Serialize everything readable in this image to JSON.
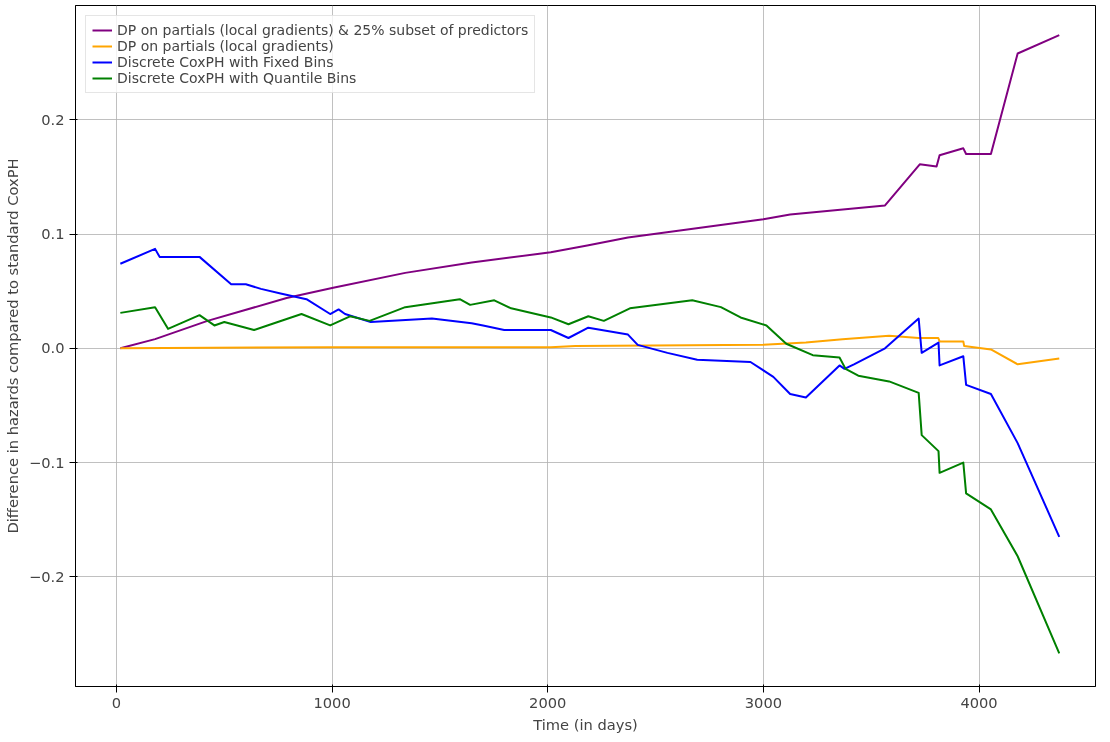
{
  "chart_data": {
    "type": "line",
    "xlabel": "Time (in days)",
    "ylabel": "Difference in hazards compared to standard CoxPH",
    "xlim": [
      -190,
      4540
    ],
    "ylim": [
      -0.296,
      0.3
    ],
    "xticks": [
      0,
      1000,
      2000,
      3000,
      4000
    ],
    "yticks": [
      {
        "value": -0.2,
        "label": "−0.2"
      },
      {
        "value": -0.1,
        "label": "−0.1"
      },
      {
        "value": 0.0,
        "label": "0.0"
      },
      {
        "value": 0.1,
        "label": "0.1"
      },
      {
        "value": 0.2,
        "label": "0.2"
      }
    ],
    "grid": true,
    "legend": "top left",
    "line_style": "solid",
    "series": [
      {
        "name": "DP on partials (local gradients) & 25% subset of predictors",
        "color": "#800080",
        "x": [
          18,
          179,
          422,
          789,
          1005,
          1339,
          1647,
          2014,
          2183,
          2372,
          3000,
          3124,
          3564,
          3725,
          3803,
          3817,
          3927,
          3940,
          4055,
          4179,
          4372
        ],
        "values": [
          0.0,
          0.008,
          0.024,
          0.044,
          0.053,
          0.066,
          0.075,
          0.084,
          0.09,
          0.097,
          0.113,
          0.117,
          0.125,
          0.161,
          0.159,
          0.169,
          0.175,
          0.17,
          0.17,
          0.258,
          0.274
        ]
      },
      {
        "name": "DP on partials (local gradients)",
        "color": "#ffa500",
        "x": [
          18,
          1000,
          2014,
          2128,
          3000,
          3197,
          3367,
          3583,
          3720,
          3811,
          3817,
          3927,
          3931,
          4055,
          4179,
          4372
        ],
        "values": [
          0.0,
          0.001,
          0.001,
          0.002,
          0.003,
          0.005,
          0.008,
          0.011,
          0.009,
          0.009,
          0.006,
          0.006,
          0.002,
          -0.001,
          -0.014,
          -0.009
        ]
      },
      {
        "name": "Discrete CoxPH with Fixed Bins",
        "color": "#0000ff",
        "x": [
          18,
          179,
          200,
          385,
          532,
          600,
          670,
          761,
          881,
          991,
          1030,
          1060,
          1179,
          1463,
          1647,
          1700,
          1798,
          2014,
          2096,
          2188,
          2372,
          2417,
          2555,
          2693,
          2940,
          3046,
          3124,
          3197,
          3353,
          3376,
          3420,
          3564,
          3720,
          3734,
          3812,
          3817,
          3927,
          3940,
          4055,
          4179,
          4372
        ],
        "values": [
          0.074,
          0.087,
          0.08,
          0.08,
          0.056,
          0.056,
          0.052,
          0.048,
          0.043,
          0.03,
          0.034,
          0.03,
          0.023,
          0.026,
          0.022,
          0.02,
          0.016,
          0.016,
          0.009,
          0.018,
          0.012,
          0.003,
          -0.004,
          -0.01,
          -0.012,
          -0.025,
          -0.04,
          -0.043,
          -0.015,
          -0.018,
          -0.014,
          0.0,
          0.026,
          -0.004,
          0.005,
          -0.015,
          -0.007,
          -0.032,
          -0.04,
          -0.083,
          -0.165
        ]
      },
      {
        "name": "Discrete CoxPH with Quantile Bins",
        "color": "#008000",
        "x": [
          18,
          179,
          239,
          385,
          454,
          500,
          638,
          700,
          858,
          991,
          1083,
          1174,
          1339,
          1592,
          1640,
          1752,
          1830,
          2014,
          2096,
          2188,
          2260,
          2381,
          2670,
          2803,
          2894,
          3014,
          3106,
          3229,
          3353,
          3381,
          3440,
          3583,
          3720,
          3734,
          3812,
          3817,
          3927,
          3940,
          4055,
          4179,
          4372
        ],
        "values": [
          0.031,
          0.036,
          0.017,
          0.029,
          0.02,
          0.023,
          0.016,
          0.02,
          0.03,
          0.02,
          0.028,
          0.024,
          0.036,
          0.043,
          0.038,
          0.042,
          0.035,
          0.027,
          0.021,
          0.028,
          0.024,
          0.035,
          0.042,
          0.036,
          0.027,
          0.02,
          0.004,
          -0.006,
          -0.008,
          -0.018,
          -0.024,
          -0.029,
          -0.039,
          -0.076,
          -0.09,
          -0.109,
          -0.1,
          -0.127,
          -0.141,
          -0.182,
          -0.267
        ]
      }
    ]
  }
}
